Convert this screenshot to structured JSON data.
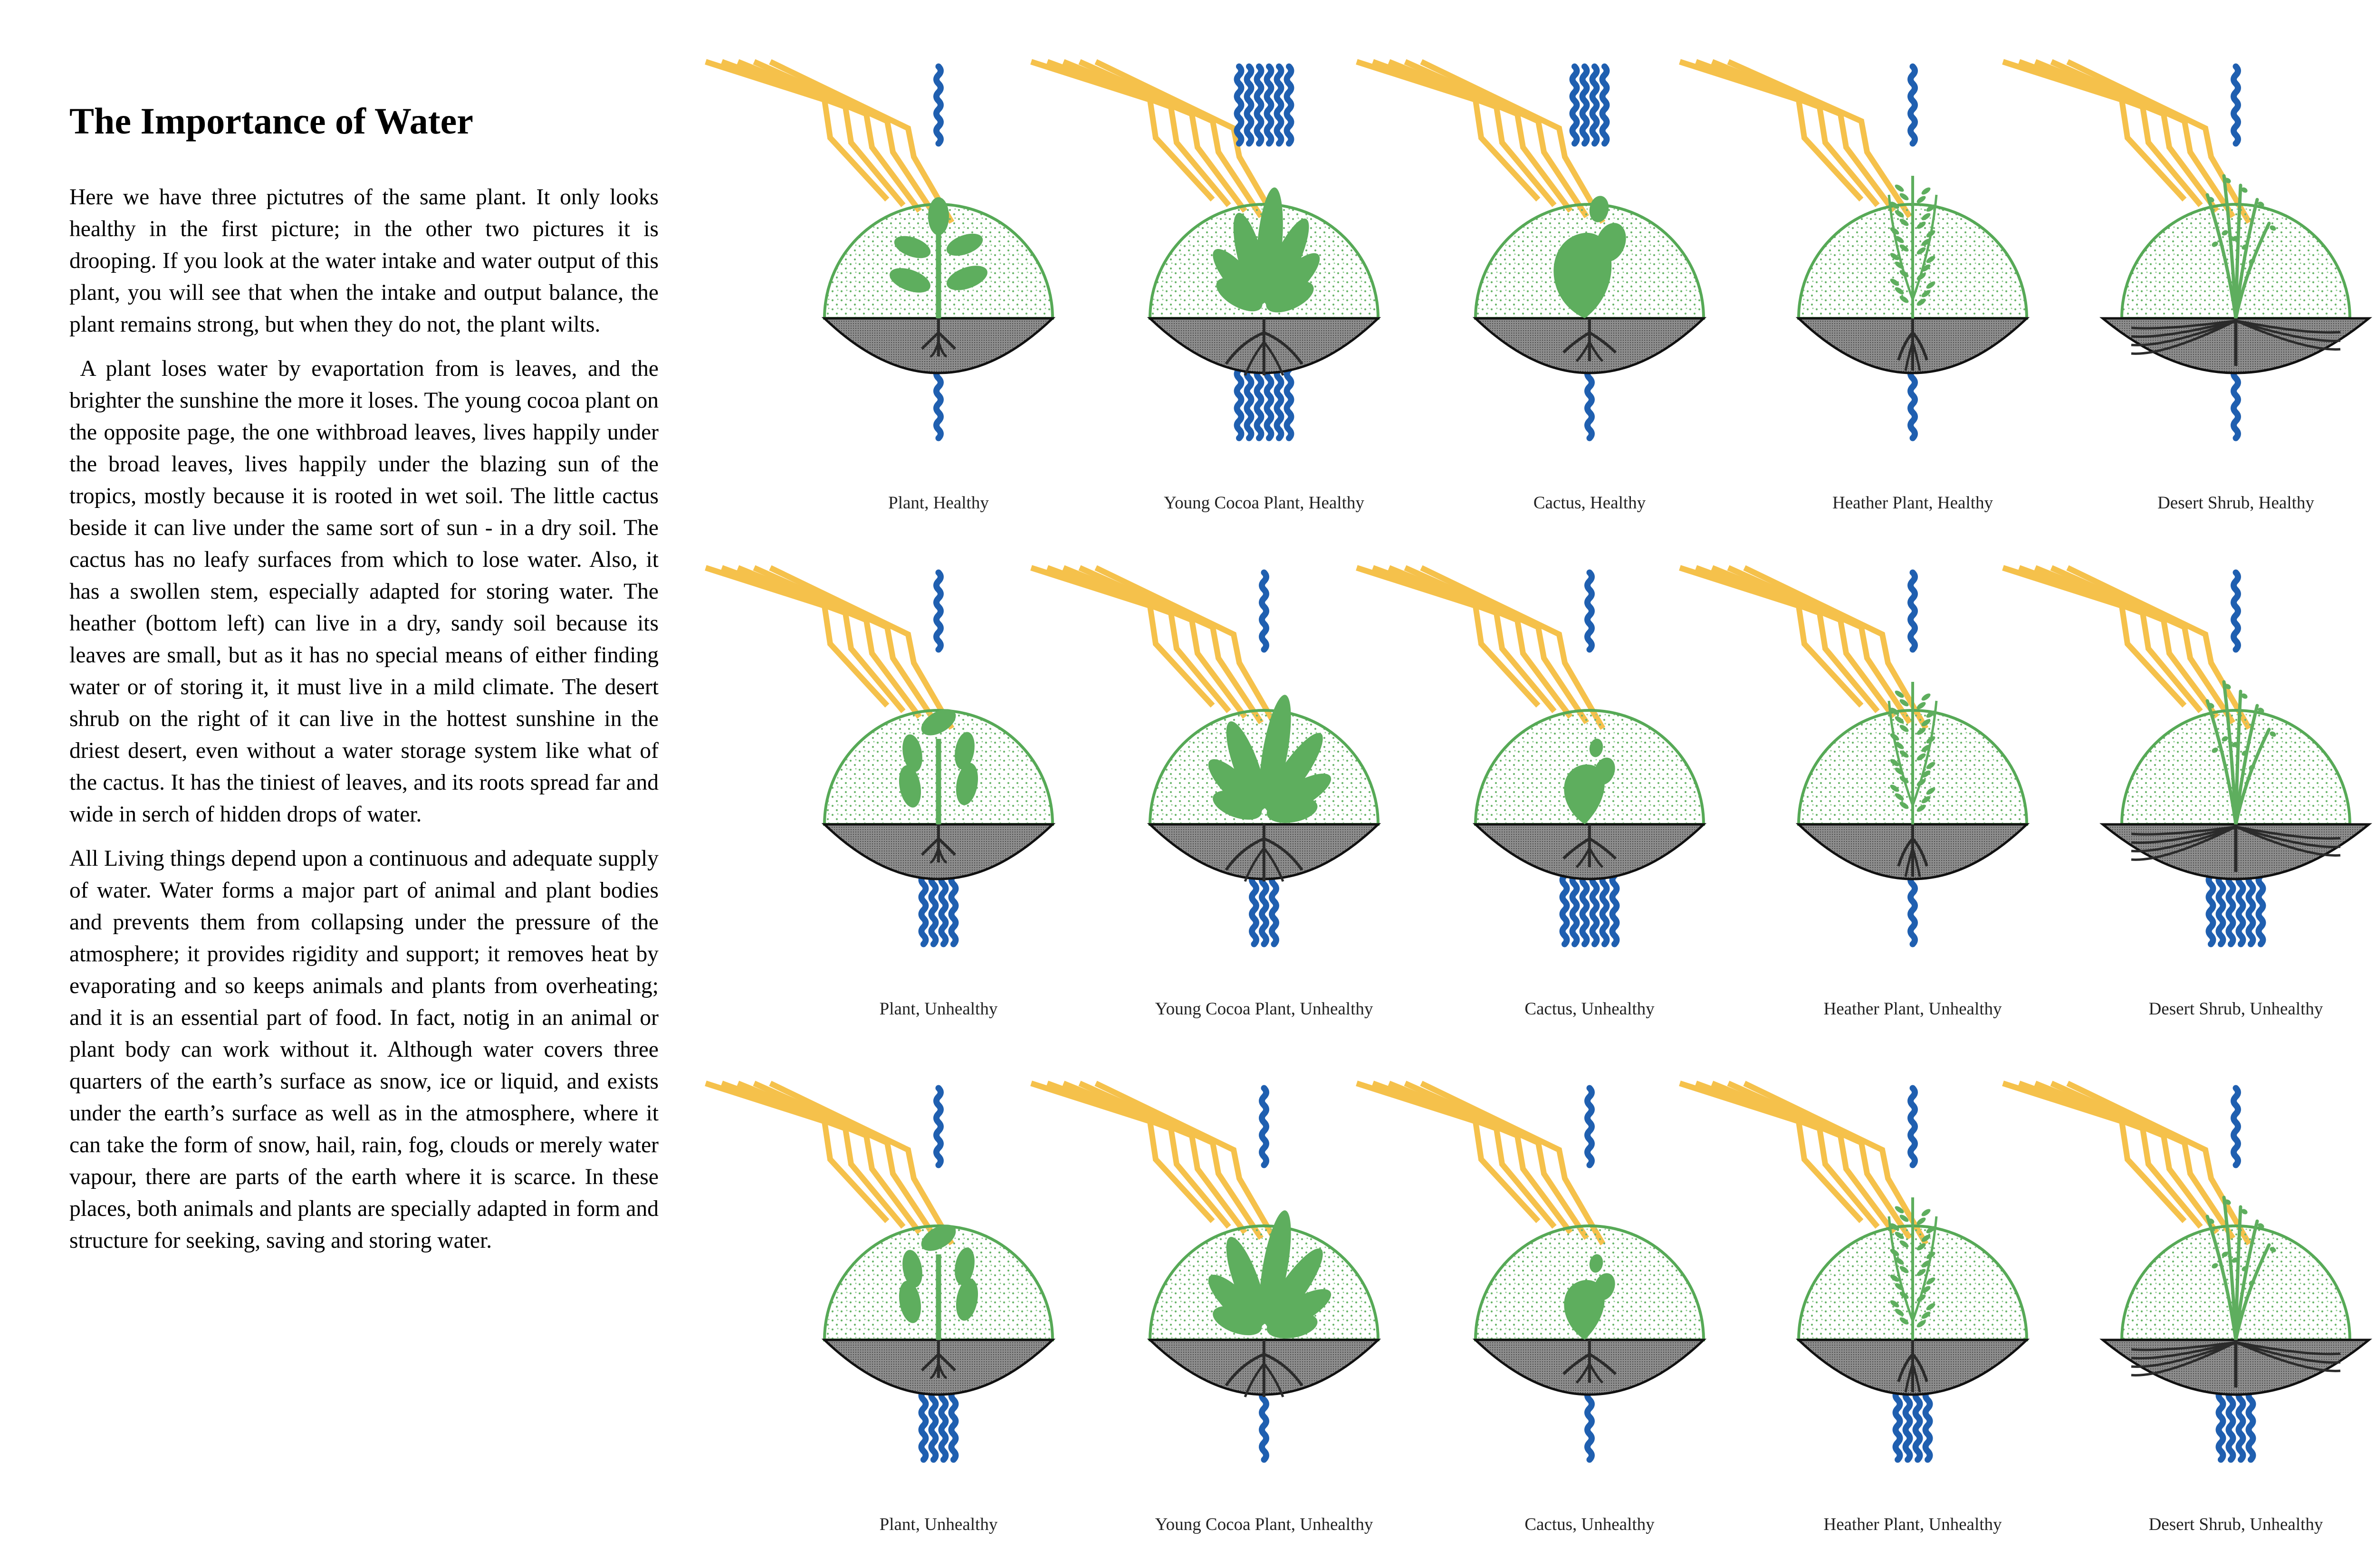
{
  "title": "The Importance of Water",
  "paragraphs": [
    "Here we have three pictutres of the same plant. It only looks healthy in the first picture; in the other two pictures it is drooping. If you look at the water intake and water output of this plant, you will see that when the intake and output balance, the plant remains strong, but when they do not, the plant wilts.",
    " A plant loses water by evaportation from is leaves, and the brighter the sunshine the more it loses. The young cocoa plant on the opposite page, the one withbroad leaves, lives happily under the broad leaves, lives happily under the blazing sun of the tropics, mostly because it is rooted in wet soil. The little cactus beside it can live under the same sort of sun - in a dry soil. The cactus has no leafy surfaces from which to lose water. Also, it has a swollen stem, especially adapted for storing water. The heather (bottom left) can live in a dry, sandy soil because its leaves are small, but as it has no special means of either finding water or of storing it, it must live in a mild climate. The desert shrub on the right of it can live in the hottest sunshine in the driest desert, even without a water storage system like what of the cactus. It has the tiniest of leaves, and its roots spread far and wide in serch of hidden drops of water.",
    "All Living things depend upon a continuous and adequate supply of water. Water forms a major part of animal and plant bodies and prevents them from collapsing under the pressure of the atmosphere; it provides rigidity and support; it removes heat by evaporating and so keeps animals and plants from overheating; and it is an essential part of food. In fact, notig in an animal or plant body can work without it. Although water covers three quarters of the earth’s surface as snow, ice or liquid, and exists under the earth’s surface as well as in the atmosphere, where it can take the form of snow, hail, rain, fog, clouds or merely water vapour, there are parts of the earth where it is scarce. In these places, both animals and plants are specially adapted in form and structure for seeking, saving and storing water."
  ],
  "colors": {
    "sun": "#F5C14B",
    "water": "#1F5FB0",
    "plant": "#5EAE5E",
    "plant_outline": "#56A956",
    "soil": "#8A8A8A",
    "root": "#2B2B2B"
  },
  "panels": [
    [
      {
        "caption": "Plant, Healthy",
        "plant": "plant",
        "condition": "healthy",
        "water_in": 1,
        "water_out": 1,
        "sun": 5
      },
      {
        "caption": "Young Cocoa Plant, Healthy",
        "plant": "cocoa",
        "condition": "healthy",
        "water_in": 6,
        "water_out": 6,
        "sun": 5
      },
      {
        "caption": "Cactus, Healthy",
        "plant": "cactus",
        "condition": "healthy",
        "water_in": 1,
        "water_out": 4,
        "sun": 5
      },
      {
        "caption": "Heather Plant, Healthy",
        "plant": "heather",
        "condition": "healthy",
        "water_in": 1,
        "water_out": 1,
        "sun": 4
      },
      {
        "caption": "Desert Shrub, Healthy",
        "plant": "shrub",
        "condition": "healthy",
        "water_in": 1,
        "water_out": 1,
        "sun": 5
      }
    ],
    [
      {
        "caption": "Plant, Unhealthy",
        "plant": "plant",
        "condition": "unhealthy",
        "water_in": 4,
        "water_out": 1,
        "sun": 5
      },
      {
        "caption": "Young Cocoa Plant, Unhealthy",
        "plant": "cocoa",
        "condition": "unhealthy",
        "water_in": 3,
        "water_out": 1,
        "sun": 5
      },
      {
        "caption": "Cactus, Unhealthy",
        "plant": "cactus",
        "condition": "unhealthy",
        "water_in": 6,
        "water_out": 1,
        "sun": 5
      },
      {
        "caption": "Heather Plant, Unhealthy",
        "plant": "heather",
        "condition": "unhealthy",
        "water_in": 1,
        "water_out": 1,
        "sun": 5
      },
      {
        "caption": "Desert Shrub, Unhealthy",
        "plant": "shrub",
        "condition": "unhealthy",
        "water_in": 6,
        "water_out": 1,
        "sun": 5
      }
    ],
    [
      {
        "caption": "Plant, Unhealthy",
        "plant": "plant",
        "condition": "unhealthy",
        "water_in": 4,
        "water_out": 1,
        "sun": 5
      },
      {
        "caption": "Young Cocoa Plant, Unhealthy",
        "plant": "cocoa",
        "condition": "unhealthy",
        "water_in": 1,
        "water_out": 1,
        "sun": 5
      },
      {
        "caption": "Cactus, Unhealthy",
        "plant": "cactus",
        "condition": "unhealthy",
        "water_in": 1,
        "water_out": 1,
        "sun": 5
      },
      {
        "caption": "Heather Plant, Unhealthy",
        "plant": "heather",
        "condition": "unhealthy",
        "water_in": 4,
        "water_out": 1,
        "sun": 5
      },
      {
        "caption": "Desert Shrub, Unhealthy",
        "plant": "shrub",
        "condition": "unhealthy",
        "water_in": 4,
        "water_out": 1,
        "sun": 5
      }
    ]
  ]
}
